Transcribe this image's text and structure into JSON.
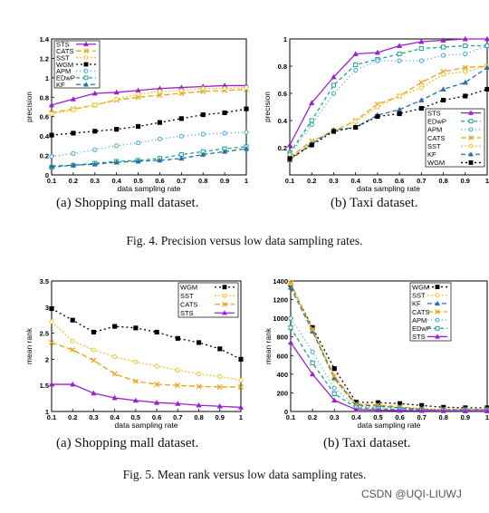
{
  "fig4": {
    "caption": "Fig. 4.  Precision versus low data sampling rates.",
    "sub_a": "(a) Shopping mall dataset.",
    "sub_b": "(b) Taxi dataset."
  },
  "fig5": {
    "caption": "Fig. 5.  Mean rank versus low data sampling rates.",
    "sub_a": "(a) Shopping mall dataset.",
    "sub_b": "(b) Taxi dataset."
  },
  "watermark": "CSDN @UQI-LIUWJ",
  "chart_data": [
    {
      "id": "fig4a",
      "type": "line",
      "xlabel": "data sampling rate",
      "ylabel": "precision",
      "x": [
        0.1,
        0.2,
        0.3,
        0.4,
        0.5,
        0.6,
        0.7,
        0.8,
        0.9,
        1
      ],
      "xticks": [
        "0.1",
        "0.2",
        "0.3",
        "0.4",
        "0.5",
        "0.6",
        "0.7",
        "0.8",
        "0.9",
        "1"
      ],
      "ylim": [
        0,
        1.4
      ],
      "yticks": [
        0,
        0.2,
        0.4,
        0.6,
        0.8,
        1,
        1.2,
        1.4
      ],
      "ytick_labels": [
        "0",
        "0.2",
        "0.4",
        "0.6",
        "0.8",
        "1",
        "1.2",
        "1.4"
      ],
      "legend_position": "top-left",
      "series": [
        {
          "name": "STS",
          "color": "#9b1fd1",
          "dash": "",
          "marker": "triangle",
          "values": [
            0.72,
            0.78,
            0.84,
            0.85,
            0.87,
            0.89,
            0.9,
            0.91,
            0.92,
            0.92
          ]
        },
        {
          "name": "CATS",
          "color": "#e8a317",
          "dash": "6,3",
          "marker": "x",
          "values": [
            0.64,
            0.68,
            0.72,
            0.77,
            0.8,
            0.82,
            0.84,
            0.86,
            0.87,
            0.88
          ]
        },
        {
          "name": "SST",
          "color": "#f2c62c",
          "dash": "2,2",
          "marker": "circle",
          "values": [
            0.63,
            0.67,
            0.72,
            0.78,
            0.83,
            0.86,
            0.87,
            0.89,
            0.89,
            0.9
          ]
        },
        {
          "name": "WGM",
          "color": "#000000",
          "dash": "2,3",
          "marker": "square",
          "values": [
            0.41,
            0.43,
            0.45,
            0.47,
            0.5,
            0.54,
            0.58,
            0.62,
            0.64,
            0.68
          ]
        },
        {
          "name": "APM",
          "color": "#35a6d8",
          "dash": "1,3",
          "marker": "circle",
          "values": [
            0.19,
            0.22,
            0.26,
            0.3,
            0.33,
            0.37,
            0.4,
            0.42,
            0.43,
            0.44
          ]
        },
        {
          "name": "EDwP",
          "color": "#1ca58a",
          "dash": "4,3",
          "marker": "square",
          "values": [
            0.08,
            0.1,
            0.12,
            0.14,
            0.15,
            0.17,
            0.21,
            0.24,
            0.27,
            0.29
          ]
        },
        {
          "name": "KF",
          "color": "#2d6ea8",
          "dash": "5,3",
          "marker": "triangle",
          "values": [
            0.09,
            0.1,
            0.11,
            0.13,
            0.14,
            0.15,
            0.17,
            0.21,
            0.24,
            0.27
          ]
        }
      ]
    },
    {
      "id": "fig4b",
      "type": "line",
      "xlabel": "data sampling rate",
      "ylabel": "precision",
      "x": [
        0.1,
        0.2,
        0.3,
        0.4,
        0.5,
        0.6,
        0.7,
        0.8,
        0.9,
        1
      ],
      "xticks": [
        "0.1",
        "0.2",
        "0.3",
        "0.4",
        "0.5",
        "0.6",
        "0.7",
        "0.8",
        "0.9",
        "1"
      ],
      "ylim": [
        0,
        1
      ],
      "yticks": [
        0.2,
        0.4,
        0.6,
        0.8,
        1
      ],
      "ytick_labels": [
        "0.2",
        "0.4",
        "0.6",
        "0.8",
        "1"
      ],
      "legend_position": "bottom-right",
      "series": [
        {
          "name": "STS",
          "color": "#9b1fd1",
          "dash": "",
          "marker": "triangle",
          "values": [
            0.22,
            0.53,
            0.72,
            0.89,
            0.9,
            0.95,
            0.98,
            0.99,
            1.0,
            1.0
          ]
        },
        {
          "name": "EDwP",
          "color": "#1ca58a",
          "dash": "4,3",
          "marker": "square",
          "values": [
            0.16,
            0.4,
            0.66,
            0.81,
            0.85,
            0.89,
            0.93,
            0.94,
            0.95,
            0.95
          ]
        },
        {
          "name": "APM",
          "color": "#35a6d8",
          "dash": "1,3",
          "marker": "circle",
          "values": [
            0.15,
            0.37,
            0.6,
            0.77,
            0.84,
            0.84,
            0.84,
            0.88,
            0.89,
            0.95
          ]
        },
        {
          "name": "CATS",
          "color": "#e8a317",
          "dash": "6,3",
          "marker": "x",
          "values": [
            0.13,
            0.25,
            0.32,
            0.4,
            0.52,
            0.58,
            0.68,
            0.76,
            0.79,
            0.8
          ]
        },
        {
          "name": "SST",
          "color": "#f2c62c",
          "dash": "2,2",
          "marker": "circle",
          "values": [
            0.12,
            0.24,
            0.33,
            0.39,
            0.5,
            0.58,
            0.64,
            0.74,
            0.76,
            0.8
          ]
        },
        {
          "name": "KF",
          "color": "#2d6ea8",
          "dash": "5,3",
          "marker": "triangle",
          "values": [
            0.11,
            0.23,
            0.33,
            0.35,
            0.44,
            0.48,
            0.55,
            0.63,
            0.68,
            0.79
          ]
        },
        {
          "name": "WGM",
          "color": "#000000",
          "dash": "2,3",
          "marker": "square",
          "values": [
            0.12,
            0.22,
            0.32,
            0.35,
            0.43,
            0.45,
            0.49,
            0.55,
            0.58,
            0.63
          ]
        }
      ]
    },
    {
      "id": "fig5a",
      "type": "line",
      "xlabel": "data sampling rate",
      "ylabel": "mean rank",
      "x": [
        0.1,
        0.2,
        0.3,
        0.4,
        0.5,
        0.6,
        0.7,
        0.8,
        0.9,
        1
      ],
      "xticks": [
        "0.1",
        "0.2",
        "0.3",
        "0.4",
        "0.5",
        "0.6",
        "0.7",
        "0.8",
        "0.9",
        "1"
      ],
      "ylim": [
        1,
        3.5
      ],
      "yticks": [
        1,
        1.5,
        2,
        2.5,
        3,
        3.5
      ],
      "ytick_labels": [
        "1",
        "1.5",
        "2",
        "2.5",
        "3",
        "3.5"
      ],
      "legend_position": "top-right",
      "series": [
        {
          "name": "WGM",
          "color": "#000000",
          "dash": "2,3",
          "marker": "square",
          "values": [
            2.97,
            2.75,
            2.52,
            2.63,
            2.6,
            2.52,
            2.4,
            2.32,
            2.2,
            2.0
          ]
        },
        {
          "name": "SST",
          "color": "#f2c62c",
          "dash": "2,2",
          "marker": "circle",
          "values": [
            2.72,
            2.35,
            2.18,
            2.05,
            1.95,
            1.87,
            1.79,
            1.72,
            1.67,
            1.6
          ]
        },
        {
          "name": "CATS",
          "color": "#e8a317",
          "dash": "6,3",
          "marker": "x",
          "values": [
            2.32,
            2.18,
            1.98,
            1.72,
            1.58,
            1.52,
            1.5,
            1.48,
            1.47,
            1.47
          ]
        },
        {
          "name": "STS",
          "color": "#9b1fd1",
          "dash": "",
          "marker": "triangle",
          "values": [
            1.52,
            1.52,
            1.35,
            1.26,
            1.21,
            1.17,
            1.15,
            1.12,
            1.1,
            1.08
          ]
        }
      ]
    },
    {
      "id": "fig5b",
      "type": "line",
      "xlabel": "data sampling rate",
      "ylabel": "mean rank",
      "x": [
        0.1,
        0.2,
        0.3,
        0.4,
        0.5,
        0.6,
        0.7,
        0.8,
        0.9,
        1
      ],
      "xticks": [
        "0.1",
        "0.2",
        "0.3",
        "0.4",
        "0.5",
        "0.6",
        "0.7",
        "0.8",
        "0.9",
        "1"
      ],
      "ylim": [
        0,
        1400
      ],
      "yticks": [
        0,
        200,
        400,
        600,
        800,
        1000,
        1200,
        1400
      ],
      "ytick_labels": [
        "0",
        "200",
        "400",
        "600",
        "800",
        "1000",
        "1200",
        "1400"
      ],
      "legend_position": "top-right",
      "series": [
        {
          "name": "WGM",
          "color": "#000000",
          "dash": "2,3",
          "marker": "square",
          "values": [
            1360,
            900,
            460,
            100,
            95,
            85,
            65,
            45,
            40,
            40
          ]
        },
        {
          "name": "SST",
          "color": "#f2c62c",
          "dash": "2,2",
          "marker": "circle",
          "values": [
            1370,
            870,
            340,
            60,
            50,
            40,
            20,
            20,
            20,
            20
          ]
        },
        {
          "name": "KF",
          "color": "#2d6ea8",
          "dash": "5,3",
          "marker": "triangle",
          "values": [
            1330,
            860,
            360,
            70,
            60,
            40,
            25,
            20,
            20,
            20
          ]
        },
        {
          "name": "CATS",
          "color": "#e8a317",
          "dash": "6,3",
          "marker": "x",
          "values": [
            1380,
            880,
            380,
            80,
            70,
            50,
            30,
            20,
            20,
            20
          ]
        },
        {
          "name": "APM",
          "color": "#35a6d8",
          "dash": "1,3",
          "marker": "circle",
          "values": [
            1000,
            640,
            250,
            55,
            40,
            30,
            20,
            15,
            15,
            15
          ]
        },
        {
          "name": "EDwP",
          "color": "#1ca58a",
          "dash": "4,3",
          "marker": "square",
          "values": [
            900,
            520,
            190,
            40,
            30,
            20,
            15,
            12,
            10,
            10
          ]
        },
        {
          "name": "STS",
          "color": "#9b1fd1",
          "dash": "",
          "marker": "triangle",
          "values": [
            740,
            400,
            120,
            20,
            15,
            10,
            8,
            6,
            5,
            5
          ]
        }
      ]
    }
  ]
}
